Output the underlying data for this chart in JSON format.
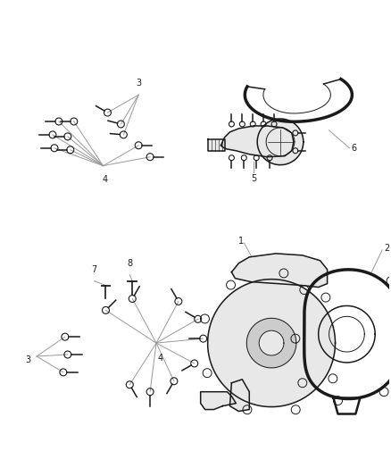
{
  "bg_color": "#ffffff",
  "dc": "#1a1a1a",
  "gray": "#cccccc",
  "lgray": "#e8e8e8",
  "leader_color": "#999999",
  "figsize": [
    4.38,
    5.33
  ],
  "dpi": 100
}
